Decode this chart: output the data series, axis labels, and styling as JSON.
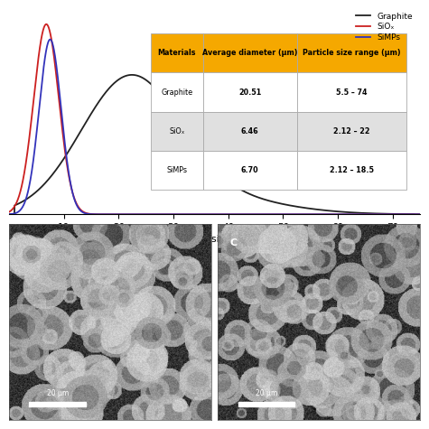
{
  "title": "Particle size (μm)",
  "legend_labels": [
    "Graphite",
    "SiOₓ",
    "SiMPs"
  ],
  "legend_colors": [
    "#222222",
    "#cc2020",
    "#3333bb"
  ],
  "graphite_peak": 22,
  "graphite_sigma": 9,
  "graphite_amp": 0.7,
  "sio_peak": 6.8,
  "sio_sigma": 2.3,
  "sio_amp": 1.0,
  "simps_peak": 7.5,
  "simps_sigma": 2.0,
  "simps_amp": 0.92,
  "xlim": [
    0,
    75
  ],
  "ylim": [
    0,
    1.08
  ],
  "xticks": [
    10,
    20,
    30,
    40,
    50,
    60,
    70
  ],
  "table_header_color": "#F5A800",
  "table_row_colors": [
    "#ffffff",
    "#e0e0e0",
    "#ffffff"
  ],
  "table_headers": [
    "Materials",
    "Average diameter (μm)",
    "Particle size range (μm)"
  ],
  "table_data": [
    [
      "Graphite",
      "20.51",
      "5.5 – 74"
    ],
    [
      "SiOₓ",
      "6.46",
      "2.12 – 22"
    ],
    [
      "SiMPs",
      "6.70",
      "2.12 – 18.5"
    ]
  ],
  "background_color": "#ffffff"
}
